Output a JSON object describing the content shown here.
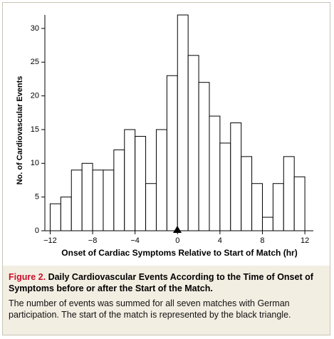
{
  "chart_data": {
    "type": "histogram",
    "ylabel": "No. of Cardiovascular Events",
    "xlabel": "Onset of Cardiac Symptoms Relative to Start of Match (hr)",
    "bins": [
      -12,
      -11,
      -10,
      -9,
      -8,
      -7,
      -6,
      -5,
      -4,
      -3,
      -2,
      -1,
      0,
      1,
      2,
      3,
      4,
      5,
      6,
      7,
      8,
      9,
      10,
      11,
      12
    ],
    "counts": [
      4,
      5,
      9,
      10,
      9,
      9,
      12,
      15,
      14,
      7,
      15,
      23,
      32,
      26,
      22,
      17,
      13,
      16,
      11,
      7,
      2,
      7,
      11,
      8
    ],
    "color": "#ffffff",
    "xlim": [
      -12.5,
      12.8
    ],
    "xticks": [
      {
        "value": -12,
        "label": "−12"
      },
      {
        "value": -8,
        "label": "−8"
      },
      {
        "value": -4,
        "label": "−4"
      },
      0,
      4,
      8,
      12
    ],
    "ylim": [
      0,
      32
    ],
    "yticks": [
      0,
      5,
      10,
      15,
      20,
      25,
      30
    ]
  },
  "caption": {
    "label": "Figure 2.",
    "title": "Daily Cardiovascular Events According to the Time of Onset of Symptoms before or after the Start of the Match.",
    "text": "The number of events was summed for all seven matches with German participation. The start of the match is represented by the black triangle."
  }
}
